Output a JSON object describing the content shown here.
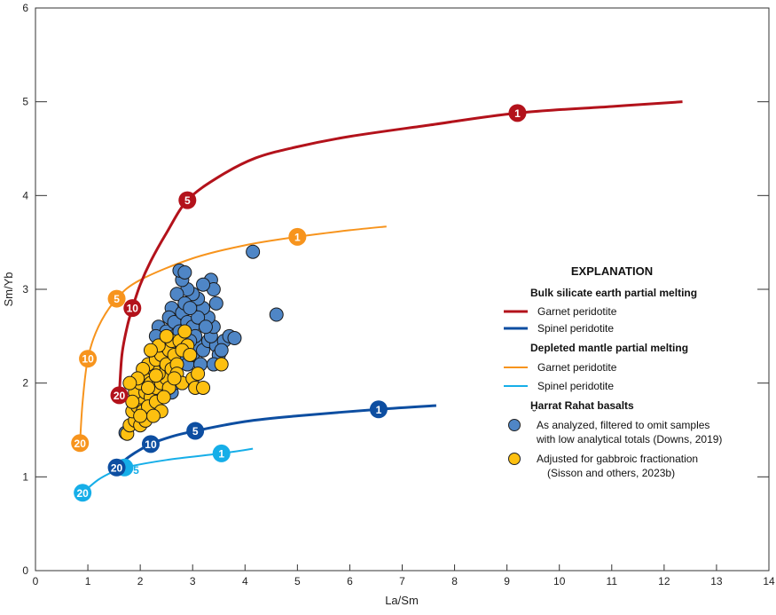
{
  "chart_data": {
    "type": "scatter",
    "xlabel": "La/Sm",
    "ylabel": "Sm/Yb",
    "xlim": [
      0,
      14
    ],
    "ylim": [
      0,
      6
    ],
    "xticks": [
      "0",
      "1",
      "2",
      "3",
      "4",
      "5",
      "6",
      "7",
      "8",
      "9",
      "10",
      "11",
      "12",
      "13",
      "14"
    ],
    "yticks": [
      "0",
      "1",
      "2",
      "3",
      "4",
      "5",
      "6"
    ],
    "grid": false,
    "legend_placement": "right",
    "legend": {
      "title": "EXPLANATION",
      "group1": "Bulk silicate earth partial melting",
      "group1_items": [
        "Garnet peridotite",
        "Spinel peridotite"
      ],
      "group2": "Depleted mantle partial melting",
      "group2_items": [
        "Garnet peridotite",
        "Spinel peridotite"
      ],
      "group3": "Ḫarrat Rahat basalts",
      "group3_items": [
        [
          "As analyzed, filtered to omit samples",
          "with low analytical totals (Downs, 2019)"
        ],
        [
          "Adjusted for gabbroic fractionation",
          "(Sisson and others, 2023b)"
        ]
      ]
    },
    "curves": [
      {
        "name": "Bulk silicate earth — Garnet peridotite",
        "color": "#b3121b",
        "points": [
          [
            1.6,
            1.87
          ],
          [
            1.65,
            2.3
          ],
          [
            1.75,
            2.6
          ],
          [
            1.85,
            2.8
          ],
          [
            2.0,
            3.05
          ],
          [
            2.2,
            3.3
          ],
          [
            2.5,
            3.6
          ],
          [
            2.9,
            3.95
          ],
          [
            3.5,
            4.2
          ],
          [
            4.2,
            4.4
          ],
          [
            5.0,
            4.52
          ],
          [
            6.0,
            4.63
          ],
          [
            7.5,
            4.75
          ],
          [
            9.2,
            4.88
          ],
          [
            11,
            4.95
          ],
          [
            12.35,
            5.0
          ]
        ],
        "markers": [
          {
            "label": "20",
            "x": 1.6,
            "y": 1.87
          },
          {
            "label": "10",
            "x": 1.85,
            "y": 2.8
          },
          {
            "label": "5",
            "x": 2.9,
            "y": 3.95
          },
          {
            "label": "1",
            "x": 9.2,
            "y": 4.88
          }
        ]
      },
      {
        "name": "Bulk silicate earth — Spinel peridotite",
        "color": "#0d4ea1",
        "points": [
          [
            1.55,
            1.1
          ],
          [
            1.8,
            1.22
          ],
          [
            2.2,
            1.35
          ],
          [
            2.6,
            1.43
          ],
          [
            3.05,
            1.49
          ],
          [
            4.0,
            1.59
          ],
          [
            5.0,
            1.65
          ],
          [
            6.55,
            1.72
          ],
          [
            7.65,
            1.76
          ]
        ],
        "markers": [
          {
            "label": "20",
            "x": 1.55,
            "y": 1.1
          },
          {
            "label": "10",
            "x": 2.2,
            "y": 1.35
          },
          {
            "label": "5",
            "x": 3.05,
            "y": 1.49
          },
          {
            "label": "1",
            "x": 6.55,
            "y": 1.72
          }
        ]
      },
      {
        "name": "Depleted mantle — Garnet peridotite",
        "color": "#f7941d",
        "points": [
          [
            0.85,
            1.36
          ],
          [
            0.9,
            1.8
          ],
          [
            1.0,
            2.26
          ],
          [
            1.2,
            2.6
          ],
          [
            1.55,
            2.9
          ],
          [
            2.0,
            3.1
          ],
          [
            3.0,
            3.33
          ],
          [
            4.0,
            3.47
          ],
          [
            5.0,
            3.56
          ],
          [
            6.0,
            3.63
          ],
          [
            6.7,
            3.67
          ]
        ],
        "markers": [
          {
            "label": "20",
            "x": 0.85,
            "y": 1.36
          },
          {
            "label": "10",
            "x": 1.0,
            "y": 2.26
          },
          {
            "label": "5",
            "x": 1.55,
            "y": 2.9
          },
          {
            "label": "1",
            "x": 5.0,
            "y": 3.56
          }
        ]
      },
      {
        "name": "Depleted mantle — Spinel peridotite",
        "color": "#16aee8",
        "points": [
          [
            0.9,
            0.83
          ],
          [
            1.2,
            0.97
          ],
          [
            1.5,
            1.06
          ],
          [
            1.7,
            1.1
          ],
          [
            2.5,
            1.18
          ],
          [
            3.55,
            1.25
          ],
          [
            4.15,
            1.3
          ]
        ],
        "markers": [
          {
            "label": "20",
            "x": 0.9,
            "y": 0.83
          },
          {
            "label": "",
            "x": 1.7,
            "y": 1.1
          },
          {
            "label": "1",
            "x": 3.55,
            "y": 1.25
          }
        ],
        "annotation": {
          "label": "5",
          "x": 1.92,
          "y": 1.03
        }
      }
    ],
    "series": [
      {
        "name": "As analyzed, filtered to omit samples with low analytical totals (Downs, 2019)",
        "color": "#4f86c6",
        "points": [
          [
            1.72,
            1.47
          ],
          [
            2.4,
            1.85
          ],
          [
            2.5,
            2.0
          ],
          [
            2.6,
            2.1
          ],
          [
            2.55,
            2.3
          ],
          [
            2.45,
            2.45
          ],
          [
            2.35,
            2.6
          ],
          [
            2.5,
            2.55
          ],
          [
            2.65,
            2.5
          ],
          [
            2.7,
            2.4
          ],
          [
            2.8,
            2.3
          ],
          [
            2.9,
            2.2
          ],
          [
            3.0,
            2.3
          ],
          [
            3.1,
            2.4
          ],
          [
            3.2,
            2.35
          ],
          [
            3.3,
            2.45
          ],
          [
            3.45,
            2.4
          ],
          [
            3.6,
            2.45
          ],
          [
            3.7,
            2.5
          ],
          [
            3.5,
            2.3
          ],
          [
            3.35,
            2.5
          ],
          [
            3.4,
            2.6
          ],
          [
            3.3,
            2.7
          ],
          [
            3.2,
            2.8
          ],
          [
            3.1,
            2.9
          ],
          [
            3.0,
            2.95
          ],
          [
            2.9,
            3.0
          ],
          [
            2.8,
            3.1
          ],
          [
            2.75,
            3.2
          ],
          [
            2.85,
            3.18
          ],
          [
            2.7,
            2.95
          ],
          [
            2.6,
            2.8
          ],
          [
            2.55,
            2.7
          ],
          [
            2.65,
            2.65
          ],
          [
            2.8,
            2.75
          ],
          [
            2.9,
            2.65
          ],
          [
            3.0,
            2.6
          ],
          [
            3.1,
            2.7
          ],
          [
            3.25,
            2.6
          ],
          [
            3.35,
            3.1
          ],
          [
            3.4,
            3.0
          ],
          [
            3.45,
            2.85
          ],
          [
            3.2,
            3.05
          ],
          [
            3.05,
            2.5
          ],
          [
            2.95,
            2.45
          ],
          [
            2.75,
            2.55
          ],
          [
            2.85,
            2.85
          ],
          [
            2.95,
            2.8
          ],
          [
            3.15,
            2.2
          ],
          [
            2.6,
            1.9
          ],
          [
            2.65,
            2.0
          ],
          [
            3.55,
            2.35
          ],
          [
            3.4,
            2.2
          ],
          [
            2.4,
            2.3
          ],
          [
            2.3,
            2.5
          ],
          [
            4.15,
            3.4
          ],
          [
            4.6,
            2.73
          ],
          [
            3.8,
            2.48
          ]
        ]
      },
      {
        "name": "Adjusted for gabbroic fractionation (Sisson and others, 2023b)",
        "color": "#fdc010",
        "points": [
          [
            1.75,
            1.46
          ],
          [
            1.8,
            1.55
          ],
          [
            1.9,
            1.6
          ],
          [
            2.0,
            1.55
          ],
          [
            2.1,
            1.6
          ],
          [
            1.85,
            1.7
          ],
          [
            1.95,
            1.75
          ],
          [
            2.05,
            1.7
          ],
          [
            2.0,
            1.85
          ],
          [
            1.9,
            1.9
          ],
          [
            2.1,
            1.9
          ],
          [
            2.2,
            1.85
          ],
          [
            2.15,
            1.75
          ],
          [
            2.3,
            1.8
          ],
          [
            2.4,
            1.7
          ],
          [
            2.0,
            2.0
          ],
          [
            2.1,
            2.05
          ],
          [
            2.2,
            2.0
          ],
          [
            2.3,
            1.95
          ],
          [
            2.4,
            2.0
          ],
          [
            2.5,
            2.05
          ],
          [
            2.35,
            2.1
          ],
          [
            2.25,
            2.15
          ],
          [
            2.15,
            2.2
          ],
          [
            2.05,
            2.15
          ],
          [
            2.3,
            2.25
          ],
          [
            2.4,
            2.3
          ],
          [
            2.5,
            2.2
          ],
          [
            2.6,
            2.15
          ],
          [
            2.45,
            2.4
          ],
          [
            2.55,
            2.35
          ],
          [
            2.65,
            2.3
          ],
          [
            2.7,
            2.2
          ],
          [
            2.6,
            2.45
          ],
          [
            2.75,
            2.45
          ],
          [
            2.85,
            2.55
          ],
          [
            2.9,
            2.4
          ],
          [
            2.8,
            2.35
          ],
          [
            2.7,
            2.1
          ],
          [
            2.8,
            2.0
          ],
          [
            2.55,
            1.95
          ],
          [
            2.45,
            1.85
          ],
          [
            2.35,
            2.4
          ],
          [
            3.0,
            2.05
          ],
          [
            3.1,
            2.1
          ],
          [
            3.05,
            1.95
          ],
          [
            3.2,
            1.95
          ],
          [
            3.55,
            2.2
          ],
          [
            2.2,
            2.35
          ],
          [
            1.95,
            2.05
          ],
          [
            1.85,
            1.8
          ],
          [
            2.25,
            1.65
          ],
          [
            2.65,
            2.05
          ],
          [
            2.95,
            2.3
          ],
          [
            2.5,
            2.5
          ],
          [
            1.8,
            2.0
          ],
          [
            2.0,
            1.65
          ],
          [
            2.3,
            2.08
          ],
          [
            2.15,
            1.95
          ]
        ]
      }
    ]
  }
}
